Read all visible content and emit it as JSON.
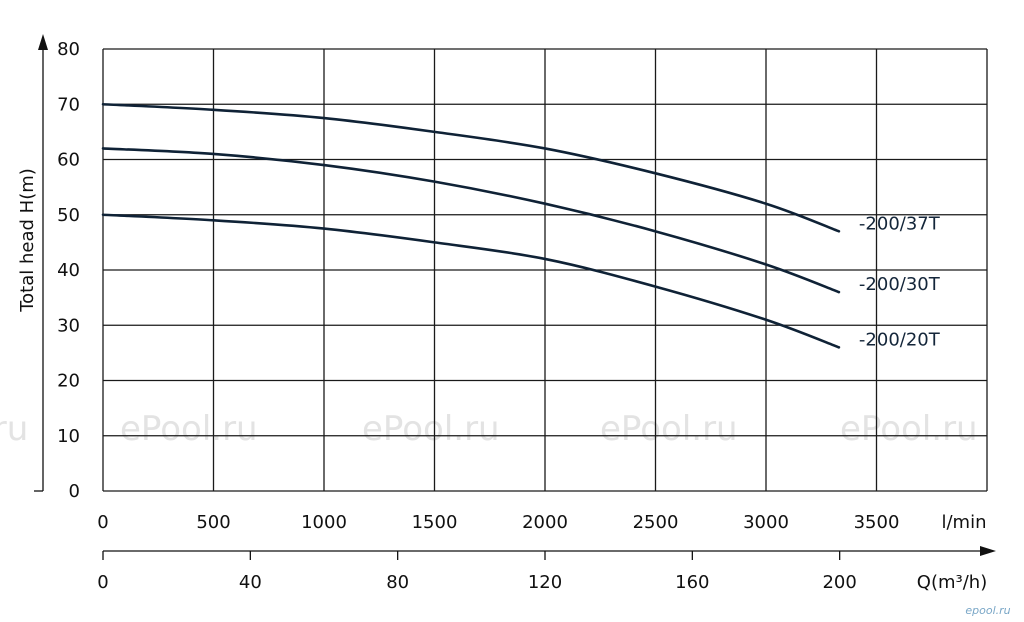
{
  "chart_data": {
    "type": "line",
    "ylabel": "Total head  H(m)",
    "x_unit": "l/min",
    "x2_unit": "Q(m³/h)",
    "ylim": [
      0,
      80
    ],
    "xlim": [
      0,
      4000
    ],
    "y_ticks": [
      0,
      10,
      20,
      30,
      40,
      50,
      60,
      70,
      80
    ],
    "x_ticks": [
      0,
      500,
      1000,
      1500,
      2000,
      2500,
      3000,
      3500
    ],
    "x2_ticks": [
      0,
      40,
      80,
      120,
      160,
      200
    ],
    "grid": true,
    "series": [
      {
        "name": "-200/37T",
        "x": [
          0,
          500,
          1000,
          1500,
          2000,
          2500,
          3000,
          3330
        ],
        "y": [
          70,
          69,
          67.5,
          65,
          62,
          57.5,
          52,
          47
        ]
      },
      {
        "name": "-200/30T",
        "x": [
          0,
          500,
          1000,
          1500,
          2000,
          2500,
          3000,
          3330
        ],
        "y": [
          62,
          61,
          59,
          56,
          52,
          47,
          41,
          36
        ]
      },
      {
        "name": "-200/20T",
        "x": [
          0,
          500,
          1000,
          1500,
          2000,
          2500,
          3000,
          3330
        ],
        "y": [
          50,
          49,
          47.5,
          45,
          42,
          37,
          31,
          26
        ]
      }
    ],
    "colors": {
      "curve": "#0f2236",
      "grid": "#1a1a1a",
      "watermark": "#e3e3e3"
    }
  },
  "watermarks": [
    "ePool.ru",
    "ePool.ru",
    "ePool.ru",
    "ePool.ru",
    ".ru"
  ],
  "corner_mark": "epool.ru"
}
